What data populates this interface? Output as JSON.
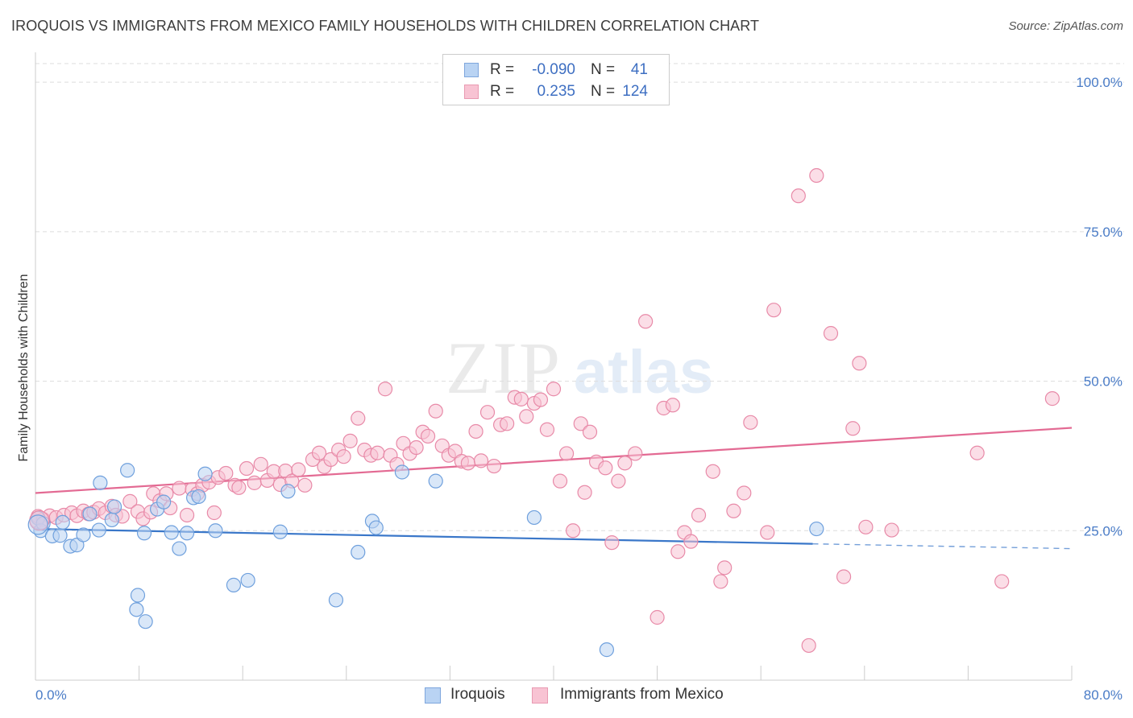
{
  "title": "IROQUOIS VS IMMIGRANTS FROM MEXICO FAMILY HOUSEHOLDS WITH CHILDREN CORRELATION CHART",
  "source": "Source: ZipAtlas.com",
  "watermark": {
    "zip": "ZIP",
    "atlas": "atlas"
  },
  "legend": {
    "series": [
      {
        "r_label": "R =",
        "r_value": "-0.090",
        "n_label": "N =",
        "n_value": "41",
        "fill": "#b9d3f3",
        "stroke": "#7ea6dd"
      },
      {
        "r_label": "R =",
        "r_value": "0.235",
        "n_label": "N =",
        "n_value": "124",
        "fill": "#f8c3d3",
        "stroke": "#e99ab2"
      }
    ]
  },
  "bottom_legend": [
    {
      "label": "Iroquois",
      "fill": "#b9d3f3",
      "stroke": "#7ea6dd"
    },
    {
      "label": "Immigrants from Mexico",
      "fill": "#f8c3d3",
      "stroke": "#e99ab2"
    }
  ],
  "chart_data": {
    "type": "scatter",
    "ylabel": "Family Households with Children",
    "xlim": [
      0,
      80
    ],
    "ylim": [
      0,
      105
    ],
    "x_tick_labels": {
      "min": "0.0%",
      "max": "80.0%"
    },
    "y_ticks": [
      {
        "value": 25,
        "label": "25.0%"
      },
      {
        "value": 50,
        "label": "50.0%"
      },
      {
        "value": 75,
        "label": "75.0%"
      },
      {
        "value": 100,
        "label": "100.0%"
      }
    ],
    "grid": "horizontal dashed",
    "legend_position": "top-center",
    "series": [
      {
        "name": "Iroquois",
        "color": "#6fa0dd",
        "fill": "#b9d3f3",
        "trend": {
          "x0": 0,
          "y0": 25.3,
          "x1": 60,
          "y1": 22.8,
          "dashed_to_x": 80,
          "dashed_to_y": 22.0,
          "color": "#3a77c9"
        },
        "points": [
          [
            0.2,
            27.1
          ],
          [
            0.4,
            25.0
          ],
          [
            0.6,
            26.2
          ],
          [
            1.3,
            24.1
          ],
          [
            1.9,
            24.2
          ],
          [
            2.1,
            26.4
          ],
          [
            2.7,
            22.4
          ],
          [
            3.2,
            22.6
          ],
          [
            3.7,
            24.3
          ],
          [
            4.2,
            27.8
          ],
          [
            4.9,
            25.1
          ],
          [
            5.0,
            33.0
          ],
          [
            5.9,
            26.8
          ],
          [
            6.1,
            29.0
          ],
          [
            7.1,
            35.1
          ],
          [
            7.8,
            11.8
          ],
          [
            7.9,
            14.2
          ],
          [
            8.4,
            24.6
          ],
          [
            8.5,
            9.8
          ],
          [
            9.4,
            28.6
          ],
          [
            9.9,
            29.8
          ],
          [
            10.5,
            24.7
          ],
          [
            11.1,
            22.0
          ],
          [
            11.7,
            24.6
          ],
          [
            12.2,
            30.5
          ],
          [
            12.6,
            30.7
          ],
          [
            13.1,
            34.5
          ],
          [
            13.9,
            25.0
          ],
          [
            15.3,
            15.9
          ],
          [
            16.4,
            16.7
          ],
          [
            18.9,
            24.8
          ],
          [
            19.5,
            31.6
          ],
          [
            23.2,
            13.4
          ],
          [
            24.9,
            21.4
          ],
          [
            26.0,
            26.6
          ],
          [
            26.3,
            25.5
          ],
          [
            28.3,
            34.8
          ],
          [
            30.9,
            33.3
          ],
          [
            38.5,
            27.2
          ],
          [
            44.1,
            5.1
          ],
          [
            60.3,
            25.3
          ]
        ]
      },
      {
        "name": "Immigrants from Mexico",
        "color": "#e88aa8",
        "fill": "#f8c3d3",
        "trend": {
          "x0": 0,
          "y0": 31.3,
          "x1": 80,
          "y1": 42.2,
          "color": "#e36a93"
        },
        "points": [
          [
            0.1,
            26.6
          ],
          [
            0.2,
            27.4
          ],
          [
            0.6,
            26.9
          ],
          [
            1.1,
            27.5
          ],
          [
            1.6,
            27.2
          ],
          [
            2.2,
            27.6
          ],
          [
            2.8,
            28.0
          ],
          [
            3.2,
            27.5
          ],
          [
            3.7,
            28.3
          ],
          [
            4.1,
            27.8
          ],
          [
            4.5,
            28.1
          ],
          [
            4.9,
            28.7
          ],
          [
            5.4,
            28.0
          ],
          [
            5.9,
            29.1
          ],
          [
            6.2,
            27.6
          ],
          [
            6.7,
            27.4
          ],
          [
            7.3,
            29.9
          ],
          [
            7.9,
            28.2
          ],
          [
            8.3,
            27.0
          ],
          [
            8.9,
            28.1
          ],
          [
            9.1,
            31.2
          ],
          [
            9.6,
            30.0
          ],
          [
            10.1,
            31.2
          ],
          [
            10.4,
            28.8
          ],
          [
            11.1,
            32.1
          ],
          [
            11.7,
            27.6
          ],
          [
            12.1,
            31.9
          ],
          [
            12.5,
            31.2
          ],
          [
            12.9,
            32.6
          ],
          [
            13.4,
            33.1
          ],
          [
            13.8,
            28.0
          ],
          [
            14.1,
            33.9
          ],
          [
            14.7,
            34.6
          ],
          [
            15.4,
            32.6
          ],
          [
            15.7,
            32.2
          ],
          [
            16.3,
            35.4
          ],
          [
            16.9,
            33.0
          ],
          [
            17.4,
            36.1
          ],
          [
            17.9,
            33.4
          ],
          [
            18.4,
            34.9
          ],
          [
            18.9,
            32.7
          ],
          [
            19.3,
            35.0
          ],
          [
            19.8,
            33.3
          ],
          [
            20.3,
            35.2
          ],
          [
            20.8,
            32.6
          ],
          [
            21.4,
            36.9
          ],
          [
            21.9,
            38.0
          ],
          [
            22.3,
            35.7
          ],
          [
            22.8,
            36.9
          ],
          [
            23.4,
            38.5
          ],
          [
            23.8,
            37.4
          ],
          [
            24.3,
            40.0
          ],
          [
            24.9,
            43.8
          ],
          [
            25.4,
            38.5
          ],
          [
            25.9,
            37.6
          ],
          [
            26.4,
            38.0
          ],
          [
            27.0,
            48.7
          ],
          [
            27.4,
            37.6
          ],
          [
            27.9,
            36.1
          ],
          [
            28.4,
            39.6
          ],
          [
            28.9,
            37.9
          ],
          [
            29.4,
            38.9
          ],
          [
            29.9,
            41.5
          ],
          [
            30.3,
            40.8
          ],
          [
            30.9,
            45.0
          ],
          [
            31.4,
            39.2
          ],
          [
            31.9,
            37.6
          ],
          [
            32.4,
            38.3
          ],
          [
            32.9,
            36.6
          ],
          [
            33.4,
            36.3
          ],
          [
            34.0,
            41.6
          ],
          [
            34.4,
            36.7
          ],
          [
            34.9,
            44.8
          ],
          [
            35.4,
            35.8
          ],
          [
            35.9,
            42.7
          ],
          [
            36.4,
            42.9
          ],
          [
            37.0,
            47.3
          ],
          [
            37.5,
            47.0
          ],
          [
            37.9,
            44.1
          ],
          [
            38.5,
            46.3
          ],
          [
            39.0,
            46.9
          ],
          [
            39.5,
            41.9
          ],
          [
            40.0,
            48.7
          ],
          [
            40.5,
            33.3
          ],
          [
            41.0,
            37.9
          ],
          [
            41.5,
            25.0
          ],
          [
            42.1,
            42.9
          ],
          [
            42.4,
            31.4
          ],
          [
            42.8,
            41.5
          ],
          [
            43.3,
            36.5
          ],
          [
            44.0,
            35.5
          ],
          [
            44.5,
            23.0
          ],
          [
            45.0,
            33.3
          ],
          [
            45.5,
            36.3
          ],
          [
            46.3,
            37.9
          ],
          [
            47.1,
            60.0
          ],
          [
            48.0,
            10.5
          ],
          [
            48.5,
            45.5
          ],
          [
            49.2,
            46.0
          ],
          [
            49.6,
            21.5
          ],
          [
            50.1,
            24.7
          ],
          [
            50.6,
            23.2
          ],
          [
            51.2,
            27.6
          ],
          [
            52.3,
            34.9
          ],
          [
            52.9,
            16.5
          ],
          [
            53.2,
            18.8
          ],
          [
            53.9,
            28.3
          ],
          [
            54.7,
            31.3
          ],
          [
            55.2,
            43.1
          ],
          [
            56.5,
            24.7
          ],
          [
            57.0,
            61.9
          ],
          [
            58.9,
            81.0
          ],
          [
            59.7,
            5.8
          ],
          [
            60.3,
            84.4
          ],
          [
            61.4,
            58.0
          ],
          [
            62.4,
            17.3
          ],
          [
            63.1,
            42.1
          ],
          [
            63.6,
            53.0
          ],
          [
            64.1,
            25.6
          ],
          [
            66.1,
            25.1
          ],
          [
            72.7,
            38.0
          ],
          [
            74.6,
            16.5
          ],
          [
            78.5,
            47.1
          ]
        ]
      }
    ]
  }
}
